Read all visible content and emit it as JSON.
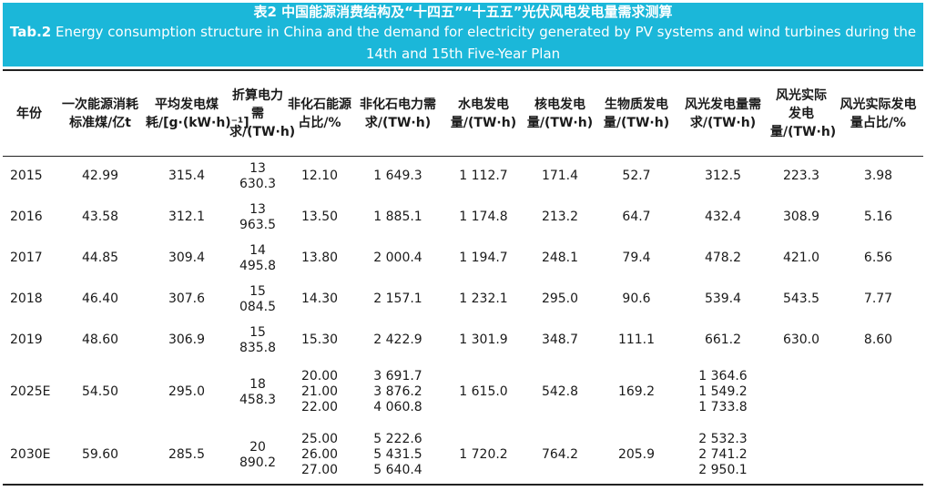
{
  "title": {
    "zh": "表2 中国能源消费结构及“十四五”“十五五”光伏风电发电量需求测算",
    "en_bold": "Tab.2",
    "en_rest": " Energy consumption structure in China and the demand for electricity generated by PV systems and wind turbines during the 14th and 15th Five-Year Plan"
  },
  "headers": [
    "年份",
    "一次能源消耗标准煤/亿t",
    "平均发电煤耗/[g·(kW·h)⁻¹]",
    "折算电力需求/(TW·h)",
    "非化石能源占比/%",
    "非化石电力需求/(TW·h)",
    "水电发电量/(TW·h)",
    "核电发电量/(TW·h)",
    "生物质发电量/(TW·h)",
    "风光发电量需求/(TW·h)",
    "风光实际发电量/(TW·h)",
    "风光实际发电量占比/%"
  ],
  "rows": [
    {
      "year": "2015",
      "coal": "42.99",
      "rate": "315.4",
      "demand": [
        "13",
        "630.3"
      ],
      "share": [
        "12.10"
      ],
      "nonfossil": [
        "1 649.3"
      ],
      "hydro": "1 112.7",
      "nuclear": "171.4",
      "bio": "52.7",
      "windpv": [
        "312.5"
      ],
      "actual": "223.3",
      "ratio": "3.98"
    },
    {
      "year": "2016",
      "coal": "43.58",
      "rate": "312.1",
      "demand": [
        "13",
        "963.5"
      ],
      "share": [
        "13.50"
      ],
      "nonfossil": [
        "1 885.1"
      ],
      "hydro": "1 174.8",
      "nuclear": "213.2",
      "bio": "64.7",
      "windpv": [
        "432.4"
      ],
      "actual": "308.9",
      "ratio": "5.16"
    },
    {
      "year": "2017",
      "coal": "44.85",
      "rate": "309.4",
      "demand": [
        "14",
        "495.8"
      ],
      "share": [
        "13.80"
      ],
      "nonfossil": [
        "2 000.4"
      ],
      "hydro": "1 194.7",
      "nuclear": "248.1",
      "bio": "79.4",
      "windpv": [
        "478.2"
      ],
      "actual": "421.0",
      "ratio": "6.56"
    },
    {
      "year": "2018",
      "coal": "46.40",
      "rate": "307.6",
      "demand": [
        "15",
        "084.5"
      ],
      "share": [
        "14.30"
      ],
      "nonfossil": [
        "2 157.1"
      ],
      "hydro": "1 232.1",
      "nuclear": "295.0",
      "bio": "90.6",
      "windpv": [
        "539.4"
      ],
      "actual": "543.5",
      "ratio": "7.77"
    },
    {
      "year": "2019",
      "coal": "48.60",
      "rate": "306.9",
      "demand": [
        "15",
        "835.8"
      ],
      "share": [
        "15.30"
      ],
      "nonfossil": [
        "2 422.9"
      ],
      "hydro": "1 301.9",
      "nuclear": "348.7",
      "bio": "111.1",
      "windpv": [
        "661.2"
      ],
      "actual": "630.0",
      "ratio": "8.60"
    },
    {
      "year": "2025E",
      "coal": "54.50",
      "rate": "295.0",
      "demand": [
        "18",
        "458.3"
      ],
      "share": [
        "20.00",
        "21.00",
        "22.00"
      ],
      "nonfossil": [
        "3 691.7",
        "3 876.2",
        "4 060.8"
      ],
      "hydro": "1 615.0",
      "nuclear": "542.8",
      "bio": "169.2",
      "windpv": [
        "1 364.6",
        "1 549.2",
        "1 733.8"
      ],
      "actual": "",
      "ratio": ""
    },
    {
      "year": "2030E",
      "coal": "59.60",
      "rate": "285.5",
      "demand": [
        "20",
        "890.2"
      ],
      "share": [
        "25.00",
        "26.00",
        "27.00"
      ],
      "nonfossil": [
        "5 222.6",
        "5 431.5",
        "5 640.4"
      ],
      "hydro": "1 720.2",
      "nuclear": "764.2",
      "bio": "205.9",
      "windpv": [
        "2 532.3",
        "2 741.2",
        "2 950.1"
      ],
      "actual": "",
      "ratio": ""
    }
  ]
}
